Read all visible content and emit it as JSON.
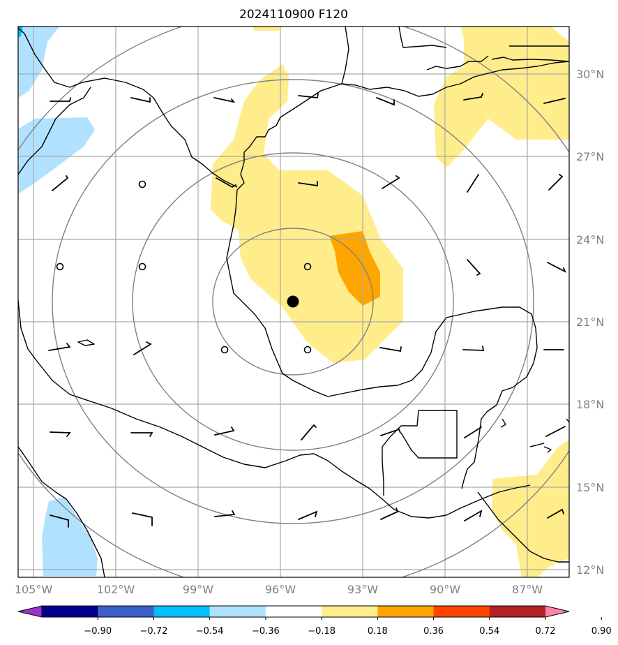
{
  "title": "2024110900 F120",
  "lat_labels": [
    "30°N",
    "27°N",
    "24°N",
    "21°N",
    "18°N",
    "15°N",
    "12°N"
  ],
  "lon_labels": [
    "105°W",
    "102°W",
    "99°W",
    "96°W",
    "93°W",
    "90°W",
    "87°W"
  ],
  "colorbar": {
    "tick_labels": [
      "−0.90",
      "−0.72",
      "−0.54",
      "−0.36",
      "−0.18",
      "0.18",
      "0.36",
      "0.54",
      "0.72",
      "0.90"
    ],
    "colors": [
      "#9a32cd",
      "#00008b",
      "#3a5fcd",
      "#00bfff",
      "#b0e2ff",
      "#ffffff",
      "#ffec8b",
      "#ffa500",
      "#ff4500",
      "#b22222",
      "#ff82ab"
    ]
  },
  "map_colors": {
    "positive_light": "#ffec8b",
    "positive_medium": "#ffa500",
    "negative_light": "#b0e2ff",
    "negative_medium": "#00bfff",
    "grid": "#a9a9a9",
    "range_rings": "#808080",
    "coastline": "#000000"
  },
  "storm_center": {
    "lat": 21.8,
    "lon": -95.7
  }
}
